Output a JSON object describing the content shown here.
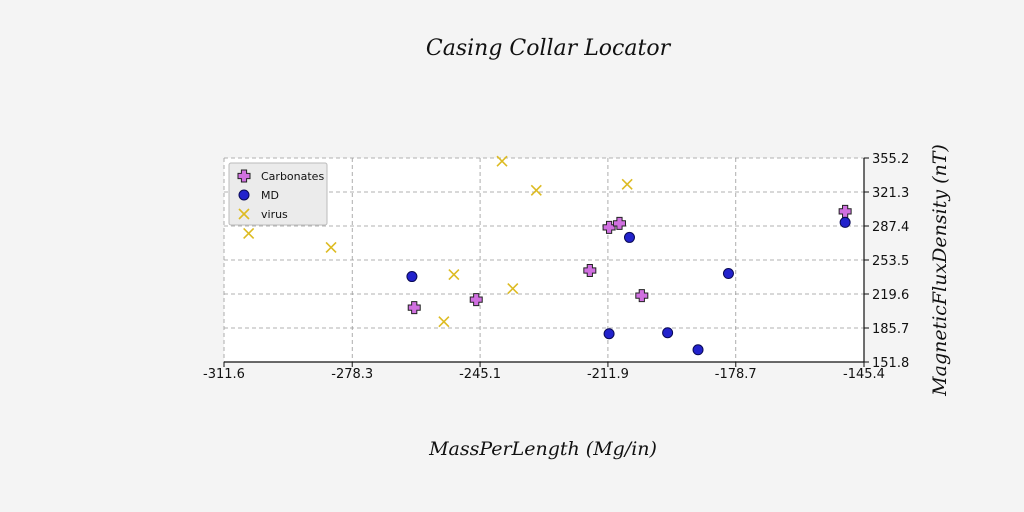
{
  "chart_data": {
    "type": "scatter",
    "title": "Casing Collar Locator",
    "xlabel": "MassPerLength (Mg/in)",
    "ylabel": "MagneticFluxDensity (nT)",
    "xlim": [
      -311.6,
      -145.4
    ],
    "ylim": [
      151.8,
      355.2
    ],
    "x_ticks": [
      "-311.6",
      "-278.3",
      "-245.1",
      "-211.9",
      "-178.7",
      "-145.4"
    ],
    "y_ticks": [
      "151.8",
      "185.7",
      "219.6",
      "253.5",
      "287.4",
      "321.3",
      "355.2"
    ],
    "y_axis_side": "right",
    "grid": true,
    "legend_position": "top-left",
    "series": [
      {
        "name": "Carbonates",
        "marker": "plus",
        "color": "#d070e0",
        "points": [
          [
            -296.6,
            298
          ],
          [
            -262.2,
            206
          ],
          [
            -246.1,
            214
          ],
          [
            -216.6,
            243
          ],
          [
            -211.6,
            286
          ],
          [
            -208.9,
            290
          ],
          [
            -203.1,
            218
          ],
          [
            -150.3,
            302
          ]
        ]
      },
      {
        "name": "MD",
        "marker": "circle",
        "color": "#2222cc",
        "points": [
          [
            -287.4,
            345
          ],
          [
            -262.8,
            237
          ],
          [
            -211.6,
            180
          ],
          [
            -206.3,
            276
          ],
          [
            -196.4,
            181
          ],
          [
            -188.5,
            164
          ],
          [
            -180.6,
            240
          ],
          [
            -150.3,
            291
          ]
        ]
      },
      {
        "name": "virus",
        "marker": "x",
        "color": "#ddbb22",
        "points": [
          [
            -305.2,
            280
          ],
          [
            -283.8,
            266
          ],
          [
            -251.9,
            239
          ],
          [
            -254.5,
            192
          ],
          [
            -239.4,
            352
          ],
          [
            -236.6,
            225
          ],
          [
            -230.5,
            323
          ],
          [
            -206.9,
            329
          ]
        ]
      }
    ]
  }
}
